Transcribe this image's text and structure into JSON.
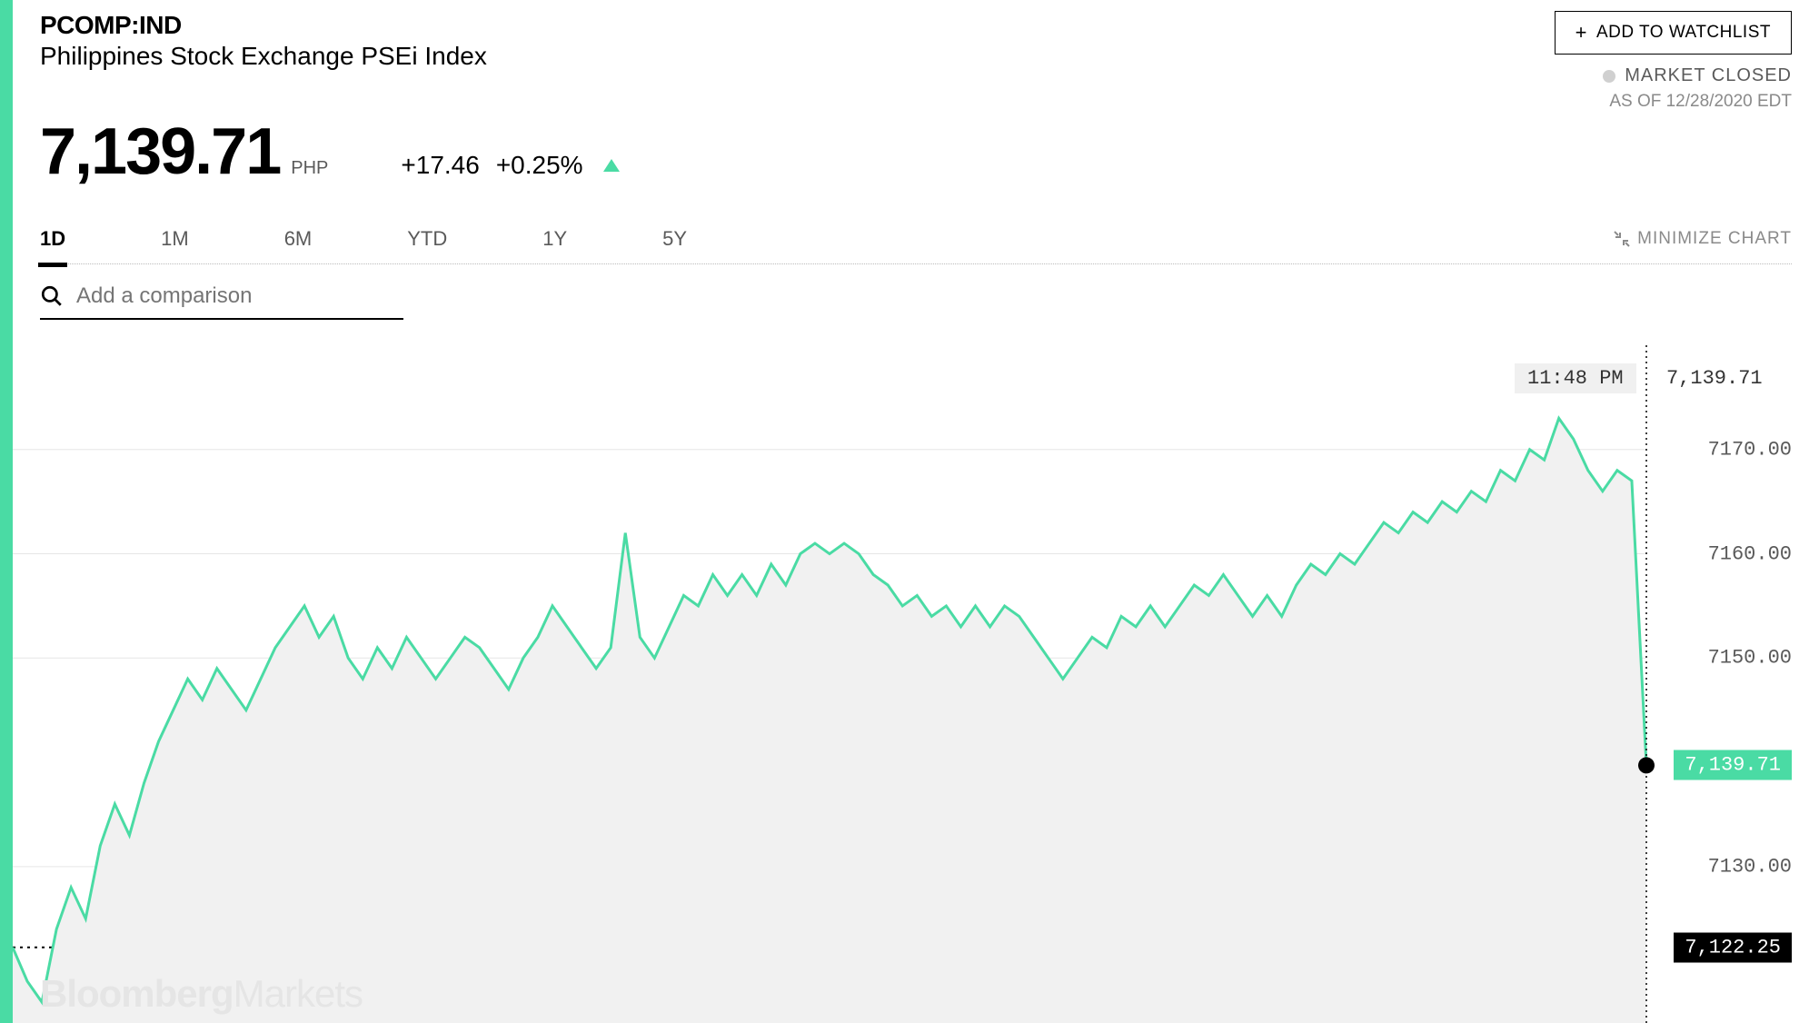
{
  "ticker": "PCOMP:IND",
  "index_name": "Philippines Stock Exchange PSEi Index",
  "price": "7,139.71",
  "currency": "PHP",
  "change_abs": "+17.46",
  "change_pct": "+0.25%",
  "watchlist_label": "ADD TO WATCHLIST",
  "market_status": "MARKET CLOSED",
  "asof": "AS OF 12/28/2020 EDT",
  "tabs": [
    "1D",
    "1M",
    "6M",
    "YTD",
    "1Y",
    "5Y"
  ],
  "active_tab": "1D",
  "minimize_label": "MINIMIZE CHART",
  "comparison_placeholder": "Add a comparison",
  "tooltip_time": "11:48 PM",
  "tooltip_value": "7,139.71",
  "watermark_bold": "Bloomberg",
  "watermark_light": "Markets",
  "chart": {
    "type": "line-area",
    "line_color": "#4adba4",
    "fill_color": "#f1f1f1",
    "grid_color": "#e6e6e6",
    "prev_close_color": "#000000",
    "marker_color": "#000000",
    "ymin": 7115,
    "ymax": 7180,
    "yticks": [
      7130,
      7150,
      7160,
      7170
    ],
    "ytick_labels": [
      "7130.00",
      "7150.00",
      "7160.00",
      "7170.00"
    ],
    "prev_close": 7122.25,
    "prev_close_label": "7,122.25",
    "current": 7139.71,
    "current_label": "7,139.71",
    "series": [
      7122.25,
      7119,
      7117,
      7124,
      7128,
      7125,
      7132,
      7136,
      7133,
      7138,
      7142,
      7145,
      7148,
      7146,
      7149,
      7147,
      7145,
      7148,
      7151,
      7153,
      7155,
      7152,
      7154,
      7150,
      7148,
      7151,
      7149,
      7152,
      7150,
      7148,
      7150,
      7152,
      7151,
      7149,
      7147,
      7150,
      7152,
      7155,
      7153,
      7151,
      7149,
      7151,
      7162,
      7152,
      7150,
      7153,
      7156,
      7155,
      7158,
      7156,
      7158,
      7156,
      7159,
      7157,
      7160,
      7161,
      7160,
      7161,
      7160,
      7158,
      7157,
      7155,
      7156,
      7154,
      7155,
      7153,
      7155,
      7153,
      7155,
      7154,
      7152,
      7150,
      7148,
      7150,
      7152,
      7151,
      7154,
      7153,
      7155,
      7153,
      7155,
      7157,
      7156,
      7158,
      7156,
      7154,
      7156,
      7154,
      7157,
      7159,
      7158,
      7160,
      7159,
      7161,
      7163,
      7162,
      7164,
      7163,
      7165,
      7164,
      7166,
      7165,
      7168,
      7167,
      7170,
      7169,
      7173,
      7171,
      7168,
      7166,
      7168,
      7167,
      7139.71
    ]
  }
}
